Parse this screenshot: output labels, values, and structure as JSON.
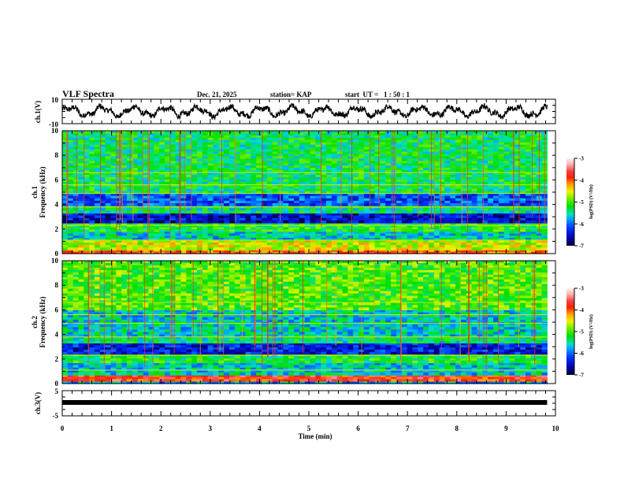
{
  "header": {
    "title": "VLF Spectra",
    "date": "Dec. 21, 2025",
    "station": "station= KAP",
    "start": "start  UT =   1 : 50 : 1"
  },
  "chart_data": [
    {
      "type": "line",
      "name": "ch1-waveform",
      "ylabel": "ch.1(V)",
      "ylim": [
        -10,
        10
      ],
      "yticks": [
        "10",
        "-10"
      ],
      "xlim": [
        0,
        10
      ],
      "data_end_min": 9.83,
      "description_values": {
        "mean": 0,
        "amplitude_approx": 5
      }
    },
    {
      "type": "heatmap",
      "name": "ch1-spectrogram",
      "channel_label": "ch.1",
      "ylabel": "Frequency (kHz)",
      "ylim": [
        0,
        10
      ],
      "yticks": [
        "0",
        "2",
        "4",
        "6",
        "8",
        "10"
      ],
      "xlim": [
        0,
        10
      ],
      "colorbar": {
        "label": "log(PSD) (V²/Hz)",
        "range": [
          -7,
          -3
        ],
        "ticks": [
          "-3",
          "-4",
          "-5",
          "-6",
          "-7"
        ]
      },
      "bands": [
        {
          "f0": 0.0,
          "f1": 0.3,
          "level": -4.0
        },
        {
          "f0": 0.3,
          "f1": 1.1,
          "level": -4.6
        },
        {
          "f0": 1.1,
          "f1": 1.8,
          "level": -5.6
        },
        {
          "f0": 1.8,
          "f1": 2.5,
          "level": -5.2
        },
        {
          "f0": 2.5,
          "f1": 3.3,
          "level": -6.5
        },
        {
          "f0": 3.3,
          "f1": 3.9,
          "level": -5.4
        },
        {
          "f0": 3.9,
          "f1": 4.9,
          "level": -6.1
        },
        {
          "f0": 4.9,
          "f1": 10.0,
          "level": -5.3
        }
      ]
    },
    {
      "type": "heatmap",
      "name": "ch2-spectrogram",
      "channel_label": "ch.2",
      "ylabel": "Frequency (kHz)",
      "ylim": [
        0,
        10
      ],
      "yticks": [
        "0",
        "2",
        "4",
        "6",
        "8",
        "10"
      ],
      "xlim": [
        0,
        10
      ],
      "colorbar": {
        "label": "log(PSD) (V²/Hz)",
        "range": [
          -7,
          -3
        ],
        "ticks": [
          "-3",
          "-4",
          "-5",
          "-6",
          "-7"
        ]
      },
      "bands": [
        {
          "f0": 0.0,
          "f1": 0.2,
          "level": -5.8
        },
        {
          "f0": 0.2,
          "f1": 0.7,
          "level": -3.8
        },
        {
          "f0": 0.7,
          "f1": 1.7,
          "level": -5.6
        },
        {
          "f0": 1.7,
          "f1": 2.4,
          "level": -5.2
        },
        {
          "f0": 2.4,
          "f1": 3.3,
          "level": -6.4
        },
        {
          "f0": 3.3,
          "f1": 3.8,
          "level": -5.4
        },
        {
          "f0": 3.8,
          "f1": 6.0,
          "level": -5.6
        },
        {
          "f0": 6.0,
          "f1": 10.0,
          "level": -5.0
        }
      ]
    },
    {
      "type": "line",
      "name": "ch3-waveform",
      "ylabel": "ch.3(V)",
      "ylim": [
        -5,
        5
      ],
      "yticks": [
        "5",
        "-5"
      ],
      "xlim": [
        0,
        10
      ],
      "level": 0,
      "data_end_min": 9.83,
      "xlabel": "Time (min)",
      "xticks": [
        "0",
        "1",
        "2",
        "3",
        "4",
        "5",
        "6",
        "7",
        "8",
        "9",
        "10"
      ]
    }
  ]
}
